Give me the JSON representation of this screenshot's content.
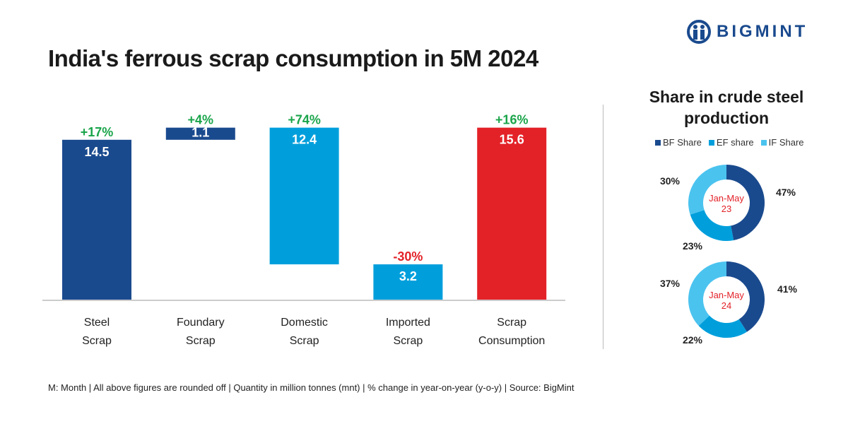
{
  "brand": "BIGMINT",
  "colors": {
    "dark_blue": "#1a4a8e",
    "light_blue": "#009fdc",
    "sky_blue": "#4bc3ef",
    "red": "#e32228",
    "green": "#1aa44a"
  },
  "footer": "M: Month | All above figures are rounded off | Quantity in million tonnes (mnt) | % change in year-on-year (y-o-y) | Source: BigMint",
  "chart_data": [
    {
      "type": "bar",
      "subtype": "waterfall",
      "title": "India's ferrous scrap consumption in 5M 2024",
      "categories": [
        [
          "Steel",
          "Scrap"
        ],
        [
          "Foundary",
          "Scrap"
        ],
        [
          "Domestic",
          "Scrap"
        ],
        [
          "Imported",
          "Scrap"
        ],
        [
          "Scrap",
          "Consumption"
        ]
      ],
      "values": [
        14.5,
        1.1,
        12.4,
        3.2,
        15.6
      ],
      "value_labels": [
        "14.5",
        "1.1",
        "12.4",
        "3.2",
        "15.6"
      ],
      "ranges": [
        [
          0,
          14.5
        ],
        [
          14.5,
          15.6
        ],
        [
          3.2,
          15.6
        ],
        [
          0,
          3.2
        ],
        [
          0,
          15.6
        ]
      ],
      "changes": [
        "+17%",
        "+4%",
        "+74%",
        "-30%",
        "+16%"
      ],
      "change_colors": [
        "#1aa44a",
        "#1aa44a",
        "#1aa44a",
        "#e32228",
        "#1aa44a"
      ],
      "bar_colors": [
        "#1a4a8e",
        "#1a4a8e",
        "#009fdc",
        "#009fdc",
        "#e32228"
      ],
      "ylim": [
        0,
        16
      ],
      "grid": false
    },
    {
      "type": "pie",
      "subtype": "donut",
      "title": "Share in crude steel production",
      "legend": [
        "BF Share",
        "EF share",
        "IF Share"
      ],
      "legend_placement": "top",
      "colors": [
        "#1a4a8e",
        "#009fdc",
        "#4bc3ef"
      ],
      "charts": [
        {
          "center_label": [
            "Jan-May",
            "23"
          ],
          "values": [
            47,
            23,
            30
          ],
          "labels": [
            "47%",
            "23%",
            "30%"
          ]
        },
        {
          "center_label": [
            "Jan-May",
            "24"
          ],
          "values": [
            41,
            22,
            37
          ],
          "labels": [
            "41%",
            "22%",
            "37%"
          ]
        }
      ]
    }
  ]
}
